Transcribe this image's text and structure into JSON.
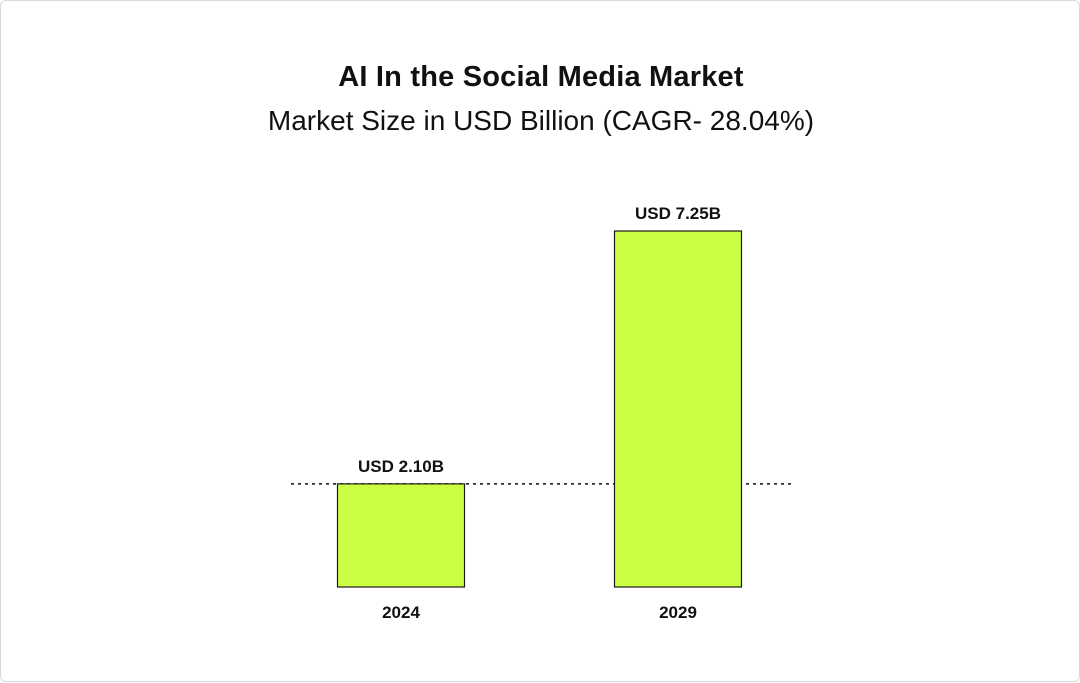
{
  "chart_data": {
    "type": "bar",
    "title": "AI In the Social Media Market",
    "subtitle": "Market Size in USD Billion (CAGR- 28.04%)",
    "categories": [
      "2024",
      "2029"
    ],
    "values": [
      2.1,
      7.25
    ],
    "data_labels": [
      "USD 2.10B",
      "USD 7.25B"
    ],
    "reference_line_value": 2.1,
    "bar_color": "#ccff44",
    "bar_outline_color": "#1a1a1a",
    "grid": false,
    "legend": "none"
  }
}
